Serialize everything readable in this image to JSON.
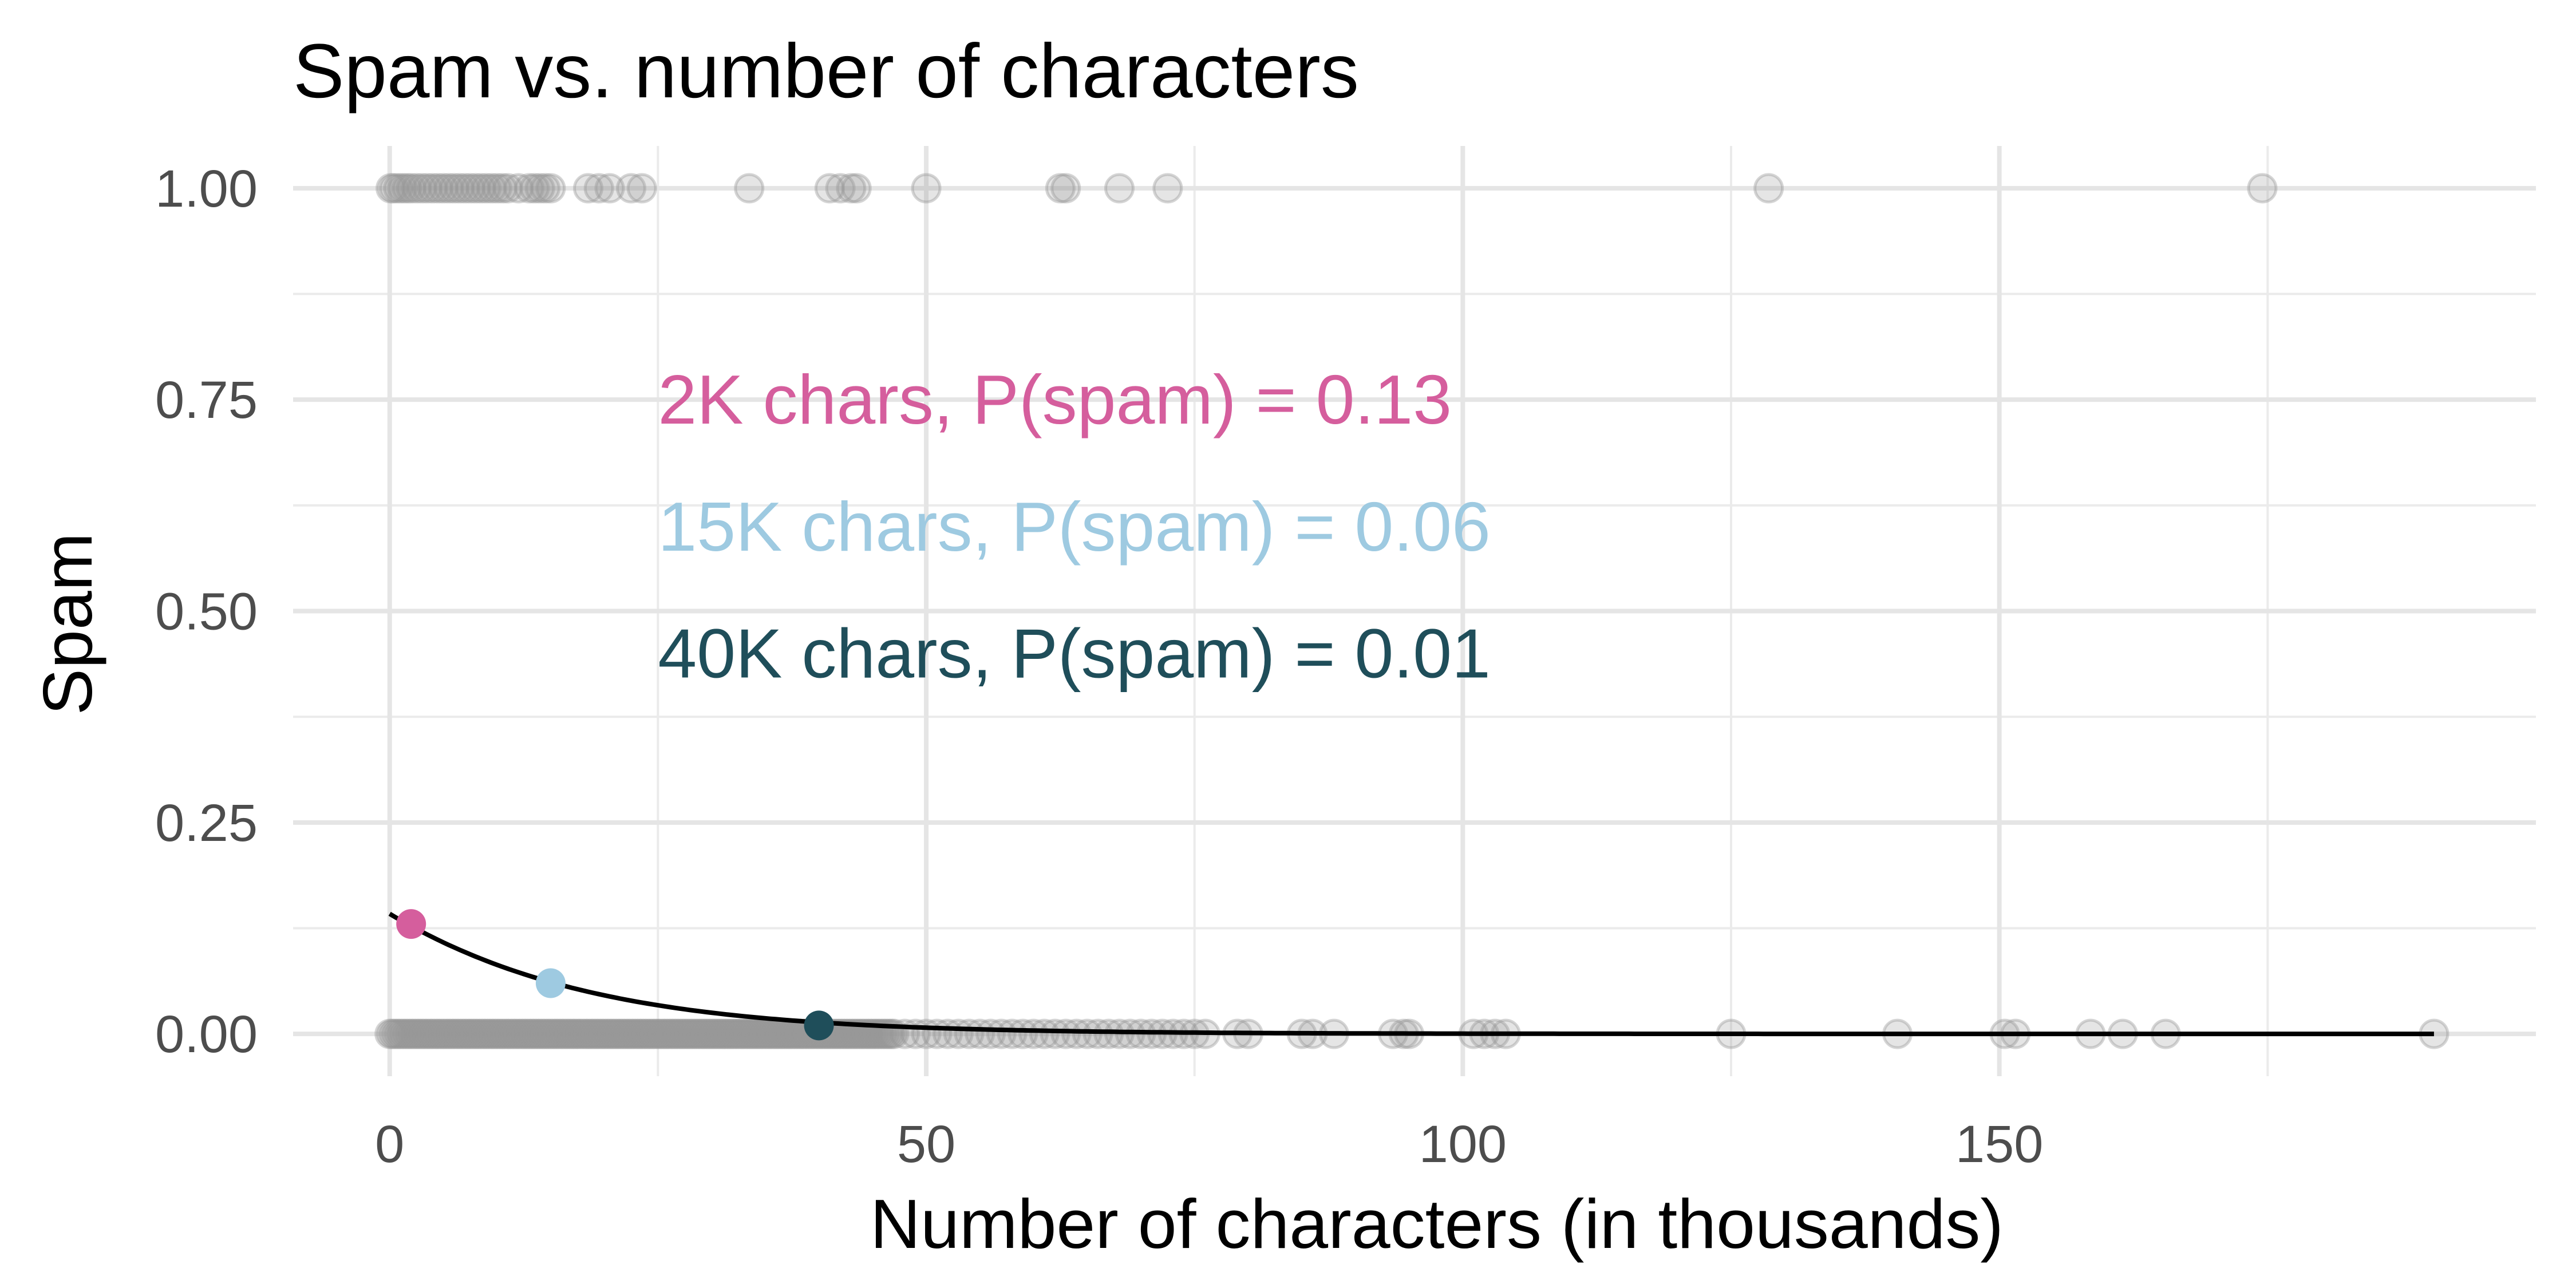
{
  "chart_data": {
    "type": "scatter",
    "title": "Spam vs. number of characters",
    "xlabel": "Number of characters (in thousands)",
    "ylabel": "Spam",
    "xlim": [
      -9,
      200
    ],
    "ylim": [
      -0.05,
      1.05
    ],
    "x_ticks": [
      0,
      50,
      100,
      150
    ],
    "x_tick_labels": [
      "0",
      "50",
      "100",
      "150"
    ],
    "x_minor_ticks": [
      25,
      75,
      125,
      175
    ],
    "y_ticks": [
      0,
      0.25,
      0.5,
      0.75,
      1.0
    ],
    "y_tick_labels": [
      "0.00",
      "0.25",
      "0.50",
      "0.75",
      "1.00"
    ],
    "y_minor_ticks": [
      0.125,
      0.375,
      0.625,
      0.875
    ],
    "grid": true,
    "point_color": "#969696",
    "curve_color": "#000000",
    "spam_points": {
      "y": 1,
      "x": [
        0.1,
        0.4,
        0.8,
        1.2,
        1.6,
        2.0,
        2.5,
        3.0,
        3.5,
        4.0,
        4.5,
        5.0,
        5.5,
        6.0,
        6.5,
        7.0,
        7.5,
        8.0,
        8.5,
        9.0,
        9.5,
        10.0,
        10.5,
        11.0,
        12.0,
        13.0,
        13.5,
        14.0,
        14.5,
        15.0,
        18.5,
        19.5,
        20.5,
        22.5,
        23.5,
        33.5,
        41.0,
        42.0,
        43.0,
        43.5,
        50.0,
        62.5,
        63.0,
        68.0,
        72.5,
        128.5,
        174.5
      ]
    },
    "ham_points": {
      "y": 0,
      "x_range_dense": [
        0,
        47
      ],
      "x": [
        48,
        49,
        50,
        51,
        52,
        53,
        54,
        55,
        56,
        57,
        58,
        59,
        60,
        61,
        62,
        63,
        64,
        65,
        66,
        67,
        68,
        69,
        70,
        71,
        72,
        73,
        74,
        75,
        76,
        79,
        80,
        85,
        86,
        88,
        93.5,
        94.5,
        95,
        101,
        102,
        103,
        104,
        125,
        140.5,
        150.5,
        151.5,
        158.5,
        161.5,
        165.5,
        190.5
      ]
    },
    "logistic_fit": {
      "intercept": -1.7987,
      "slope": -0.0621
    },
    "highlight_points": [
      {
        "x": 2,
        "y": 0.13,
        "color": "#D55E9D"
      },
      {
        "x": 15,
        "y": 0.06,
        "color": "#9ECAE1"
      },
      {
        "x": 40,
        "y": 0.01,
        "color": "#1F4E5A"
      }
    ],
    "annotations": [
      {
        "text": "2K chars, P(spam) = 0.13",
        "color": "#D55E9D",
        "x": 25,
        "y": 0.75
      },
      {
        "text": "15K chars, P(spam) = 0.06",
        "color": "#9ECAE1",
        "x": 25,
        "y": 0.6
      },
      {
        "text": "40K chars, P(spam) = 0.01",
        "color": "#1F4E5A",
        "x": 25,
        "y": 0.45
      }
    ]
  }
}
